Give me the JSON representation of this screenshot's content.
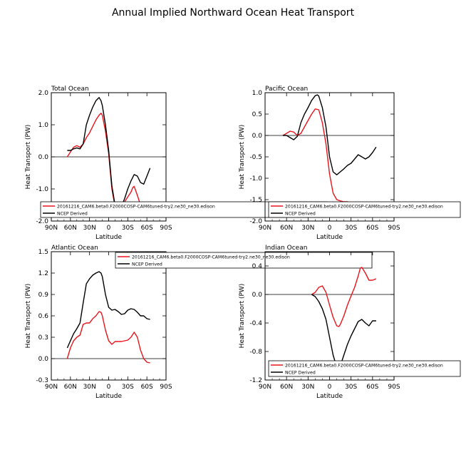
{
  "page": {
    "title": "Annual Implied Northward Ocean Heat Transport"
  },
  "colors": {
    "model": "#e8141c",
    "obs": "#000000",
    "frame": "#000000"
  },
  "common": {
    "xlabel": "Latitude",
    "ylabel": "Heat Transport (PW)",
    "x_ticks": [
      "90N",
      "60N",
      "30N",
      "0",
      "30S",
      "60S",
      "90S"
    ],
    "x_tick_values": [
      90,
      60,
      30,
      0,
      -30,
      -60,
      -90
    ],
    "series_names": [
      "20161216_CAM6.beta0.F2000COSP-CAM6tuned-try2.ne30_ne30.edison",
      "NCEP Derived"
    ]
  },
  "chart_data": [
    {
      "type": "line",
      "title": "Total Ocean",
      "xlim": [
        90,
        -90
      ],
      "ylim": [
        -2.0,
        2.0
      ],
      "y_ticks": [
        -2.0,
        -1.0,
        0.0,
        1.0,
        2.0
      ],
      "y_tick_labels": [
        "-2.0",
        "-1.0",
        "0.0",
        "1.0",
        "2.0"
      ],
      "series": [
        {
          "name": "20161216_CAM6.beta0.F2000COSP-CAM6tuned-try2.ne30_ne30.edison",
          "color": "model",
          "x": [
            65,
            60,
            55,
            50,
            45,
            40,
            35,
            30,
            25,
            20,
            15,
            12,
            10,
            5,
            0,
            -5,
            -10,
            -15,
            -20,
            -25,
            -30,
            -35,
            -38,
            -40,
            -45,
            -50,
            -55,
            -60,
            -65
          ],
          "y": [
            0.0,
            0.15,
            0.3,
            0.35,
            0.3,
            0.4,
            0.6,
            0.75,
            0.95,
            1.15,
            1.3,
            1.36,
            1.3,
            0.8,
            0.1,
            -1.0,
            -1.55,
            -1.7,
            -1.6,
            -1.4,
            -1.25,
            -1.1,
            -0.95,
            -0.92,
            -1.2,
            -1.5,
            -1.6,
            -1.62,
            -1.6
          ]
        },
        {
          "name": "NCEP Derived",
          "color": "obs",
          "x": [
            65,
            60,
            55,
            50,
            45,
            40,
            35,
            30,
            25,
            20,
            15,
            12,
            10,
            5,
            0,
            -5,
            -10,
            -15,
            -20,
            -25,
            -30,
            -35,
            -40,
            -45,
            -50,
            -55,
            -60,
            -65
          ],
          "y": [
            0.2,
            0.2,
            0.25,
            0.28,
            0.25,
            0.4,
            1.0,
            1.3,
            1.55,
            1.75,
            1.85,
            1.75,
            1.6,
            1.0,
            0.2,
            -0.9,
            -1.5,
            -1.65,
            -1.55,
            -1.3,
            -1.0,
            -0.75,
            -0.55,
            -0.6,
            -0.8,
            -0.85,
            -0.6,
            -0.35
          ]
        }
      ]
    },
    {
      "type": "line",
      "title": "Pacific Ocean",
      "xlim": [
        90,
        -90
      ],
      "ylim": [
        -2.0,
        1.0
      ],
      "y_ticks": [
        -2.0,
        -1.5,
        -1.0,
        -0.5,
        0.0,
        0.5,
        1.0
      ],
      "y_tick_labels": [
        "-2.0",
        "-1.5",
        "-1.0",
        "-0.5",
        "0.0",
        "0.5",
        "1.0"
      ],
      "series": [
        {
          "name": "20161216_CAM6.beta0.F2000COSP-CAM6tuned-try2.ne30_ne30.edison",
          "color": "model",
          "x": [
            65,
            60,
            55,
            50,
            45,
            40,
            35,
            30,
            25,
            20,
            15,
            10,
            5,
            0,
            -5,
            -10,
            -15,
            -20,
            -25,
            -30,
            -35,
            -40,
            -45,
            -50,
            -55,
            -60,
            -65
          ],
          "y": [
            0.0,
            0.05,
            0.1,
            0.08,
            0.0,
            0.05,
            0.2,
            0.35,
            0.5,
            0.62,
            0.6,
            0.3,
            -0.2,
            -0.9,
            -1.35,
            -1.5,
            -1.53,
            -1.55,
            -1.55,
            -1.57,
            -1.6,
            -1.65,
            -1.72,
            -1.78,
            -1.8,
            -1.77,
            -1.75
          ]
        },
        {
          "name": "NCEP Derived",
          "color": "obs",
          "x": [
            65,
            60,
            55,
            50,
            45,
            40,
            35,
            30,
            25,
            20,
            17,
            15,
            10,
            5,
            0,
            -5,
            -10,
            -15,
            -20,
            -25,
            -30,
            -35,
            -40,
            -45,
            -50,
            -55,
            -60,
            -65
          ],
          "y": [
            0.0,
            0.0,
            -0.05,
            -0.1,
            -0.02,
            0.3,
            0.5,
            0.65,
            0.82,
            0.93,
            0.95,
            0.92,
            0.65,
            0.2,
            -0.5,
            -0.85,
            -0.92,
            -0.85,
            -0.78,
            -0.7,
            -0.65,
            -0.55,
            -0.45,
            -0.5,
            -0.55,
            -0.5,
            -0.4,
            -0.27
          ]
        }
      ]
    },
    {
      "type": "line",
      "title": "Atlantic Ocean",
      "xlim": [
        90,
        -90
      ],
      "ylim": [
        -0.3,
        1.5
      ],
      "y_ticks": [
        -0.3,
        0.0,
        0.3,
        0.6,
        0.9,
        1.2,
        1.5
      ],
      "y_tick_labels": [
        "-0.3",
        "0.0",
        "0.3",
        "0.6",
        "0.9",
        "1.2",
        "1.5"
      ],
      "series": [
        {
          "name": "20161216_CAM6.beta0.F2000COSP-CAM6tuned-try2.ne30_ne30.edison",
          "color": "model",
          "x": [
            65,
            60,
            55,
            50,
            45,
            40,
            35,
            30,
            25,
            20,
            15,
            12,
            10,
            5,
            0,
            -5,
            -10,
            -15,
            -20,
            -25,
            -30,
            -35,
            -40,
            -45,
            -50,
            -55,
            -60,
            -65
          ],
          "y": [
            0.0,
            0.15,
            0.25,
            0.3,
            0.33,
            0.48,
            0.5,
            0.5,
            0.56,
            0.6,
            0.66,
            0.65,
            0.6,
            0.4,
            0.25,
            0.2,
            0.24,
            0.24,
            0.24,
            0.25,
            0.26,
            0.3,
            0.37,
            0.3,
            0.12,
            0.0,
            -0.05,
            -0.06
          ]
        },
        {
          "name": "NCEP Derived",
          "color": "obs",
          "x": [
            65,
            60,
            55,
            50,
            45,
            40,
            35,
            30,
            25,
            20,
            15,
            12,
            10,
            5,
            0,
            -5,
            -10,
            -15,
            -20,
            -25,
            -30,
            -35,
            -40,
            -45,
            -50,
            -55,
            -60,
            -65
          ],
          "y": [
            0.15,
            0.25,
            0.35,
            0.42,
            0.5,
            0.78,
            1.05,
            1.12,
            1.17,
            1.2,
            1.22,
            1.2,
            1.15,
            0.9,
            0.72,
            0.68,
            0.69,
            0.66,
            0.62,
            0.63,
            0.68,
            0.7,
            0.69,
            0.65,
            0.6,
            0.6,
            0.56,
            0.55
          ]
        }
      ]
    },
    {
      "type": "line",
      "title": "Indian Ocean",
      "xlim": [
        90,
        -90
      ],
      "ylim": [
        -1.2,
        0.6
      ],
      "y_ticks": [
        -1.2,
        -0.8,
        -0.4,
        0.0,
        0.4
      ],
      "y_tick_labels": [
        "-1.2",
        "-0.8",
        "-0.4",
        "0.0",
        "0.4"
      ],
      "series": [
        {
          "name": "20161216_CAM6.beta0.F2000COSP-CAM6tuned-try2.ne30_ne30.edison",
          "color": "model",
          "x": [
            25,
            20,
            15,
            10,
            5,
            0,
            -5,
            -10,
            -13,
            -15,
            -20,
            -25,
            -30,
            -35,
            -40,
            -43,
            -45,
            -50,
            -55,
            -60,
            -65
          ],
          "y": [
            0.0,
            0.03,
            0.1,
            0.12,
            0.03,
            -0.15,
            -0.32,
            -0.44,
            -0.45,
            -0.42,
            -0.3,
            -0.15,
            -0.02,
            0.1,
            0.26,
            0.37,
            0.38,
            0.3,
            0.2,
            0.2,
            0.22
          ]
        },
        {
          "name": "NCEP Derived",
          "color": "obs",
          "x": [
            25,
            20,
            15,
            10,
            5,
            0,
            -5,
            -10,
            -13,
            -15,
            -20,
            -25,
            -30,
            -35,
            -40,
            -45,
            -50,
            -55,
            -60,
            -65
          ],
          "y": [
            0.0,
            -0.03,
            -0.1,
            -0.2,
            -0.35,
            -0.6,
            -0.85,
            -1.02,
            -1.04,
            -1.0,
            -0.85,
            -0.7,
            -0.58,
            -0.48,
            -0.38,
            -0.35,
            -0.4,
            -0.44,
            -0.37,
            -0.37
          ]
        }
      ]
    }
  ]
}
